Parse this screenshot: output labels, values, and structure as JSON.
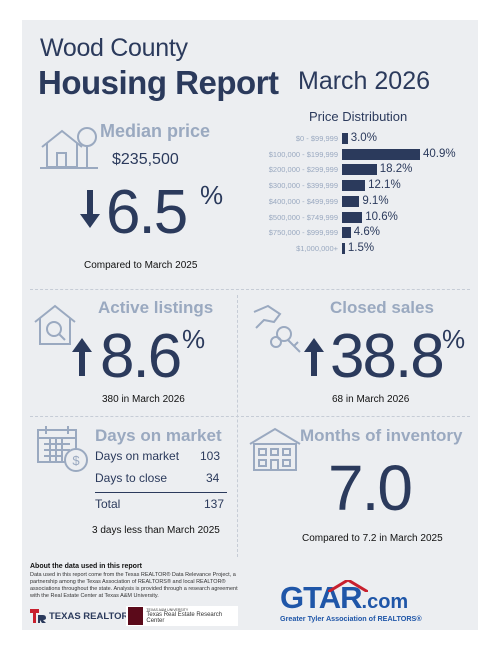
{
  "header": {
    "county": "Wood County",
    "report": "Housing Report",
    "month": "March 2026"
  },
  "price_distribution": {
    "title": "Price Distribution",
    "rows": [
      {
        "label": "$0 - $99,999",
        "value": 3.0,
        "display": "3.0%"
      },
      {
        "label": "$100,000 - $199,999",
        "value": 40.9,
        "display": "40.9%"
      },
      {
        "label": "$200,000 - $299,999",
        "value": 18.2,
        "display": "18.2%"
      },
      {
        "label": "$300,000 - $399,999",
        "value": 12.1,
        "display": "12.1%"
      },
      {
        "label": "$400,000 - $499,999",
        "value": 9.1,
        "display": "9.1%"
      },
      {
        "label": "$500,000 - $749,999",
        "value": 10.6,
        "display": "10.6%"
      },
      {
        "label": "$750,000 - $999,999",
        "value": 4.6,
        "display": "4.6%"
      },
      {
        "label": "$1,000,000+",
        "value": 1.5,
        "display": "1.5%"
      }
    ]
  },
  "median_price": {
    "label": "Median price",
    "price": "$235,500",
    "change": "6.5",
    "pct": "%",
    "direction": "down",
    "compare": "Compared to March 2025"
  },
  "active_listings": {
    "label": "Active listings",
    "change": "8.6",
    "pct": "%",
    "direction": "up",
    "note": "380 in March 2026"
  },
  "closed_sales": {
    "label": "Closed sales",
    "change": "38.8",
    "pct": "%",
    "direction": "up",
    "note": "68 in March 2026"
  },
  "days_on_market": {
    "label": "Days on market",
    "rows": [
      {
        "label": "Days on market",
        "value": "103"
      },
      {
        "label": "Days to close",
        "value": "34"
      },
      {
        "label": "Total",
        "value": "137"
      }
    ],
    "note": "3 days less than March 2025"
  },
  "months_inventory": {
    "label": "Months of inventory",
    "value": "7.0",
    "note": "Compared to 7.2 in March 2025"
  },
  "footer": {
    "about_title": "About the data used in this report",
    "about_text": "Data used in this report come from the Texas REALTOR® Data Relevance Project, a partnership among the Texas Association of REALTORS® and local REALTOR® associations throughout the state. Analysis is provided through a research agreement with the Real Estate Center at Texas A&M University.",
    "texas_realtors": "TEXAS REALTORS",
    "tamu_small": "TEXAS A&M UNIVERSITY",
    "tamu": "Texas Real Estate Research Center",
    "gtar": "GTAR",
    "gtar_com": ".com",
    "gtar_sub": "Greater Tyler Association of REALTORS®"
  },
  "colors": {
    "navy": "#2b3a5c",
    "steel": "#9aa9c0",
    "panel": "#eceef1",
    "red": "#c8202e",
    "blue": "#1f56a8"
  }
}
